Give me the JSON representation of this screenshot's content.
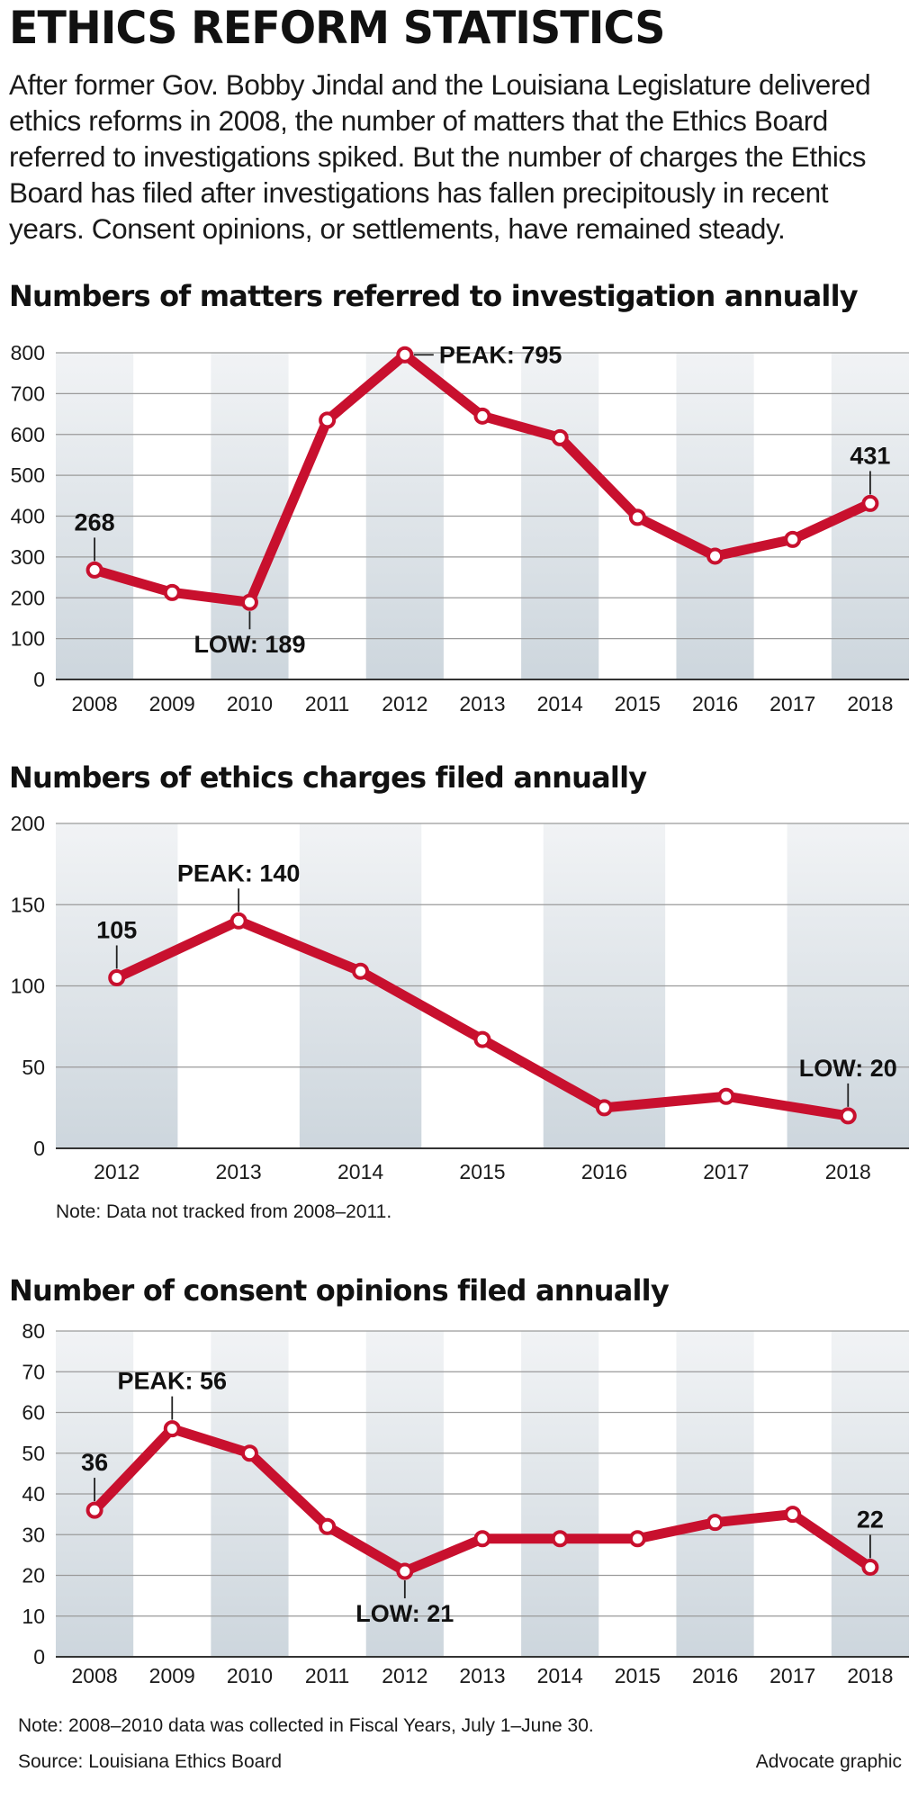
{
  "header": {
    "title": "ETHICS REFORM STATISTICS",
    "intro": "After former Gov. Bobby Jindal and the Louisiana Legislature delivered ethics reforms in 2008, the number of matters that the Ethics Board referred to investigations spiked. But the number of charges the Ethics Board has filed after investigations has fallen precipitously in recent years. Consent opinions, or settlements, have remained steady."
  },
  "colors": {
    "line": "#c8102e",
    "grid": "#9a9a9a",
    "band_top": "#f1f3f5",
    "band_bottom": "#cdd6dd"
  },
  "chart_data": [
    {
      "type": "line",
      "title": "Numbers of matters referred to investigation annually",
      "categories": [
        "2008",
        "2009",
        "2010",
        "2011",
        "2012",
        "2013",
        "2014",
        "2015",
        "2016",
        "2017",
        "2018"
      ],
      "values": [
        268,
        213,
        189,
        635,
        795,
        645,
        592,
        397,
        302,
        343,
        431
      ],
      "ylim": [
        0,
        800
      ],
      "yticks": [
        0,
        100,
        200,
        300,
        400,
        500,
        600,
        700,
        800
      ],
      "annotations": [
        {
          "index": 0,
          "label": "268",
          "position": "above"
        },
        {
          "index": 2,
          "label": "LOW: 189",
          "position": "below"
        },
        {
          "index": 4,
          "label": "PEAK: 795",
          "position": "right"
        },
        {
          "index": 10,
          "label": "431",
          "position": "above"
        }
      ],
      "note": ""
    },
    {
      "type": "line",
      "title": "Numbers of ethics charges filed annually",
      "categories": [
        "2012",
        "2013",
        "2014",
        "2015",
        "2016",
        "2017",
        "2018"
      ],
      "values": [
        105,
        140,
        109,
        67,
        25,
        32,
        20
      ],
      "ylim": [
        0,
        200
      ],
      "yticks": [
        0,
        50,
        100,
        150,
        200
      ],
      "annotations": [
        {
          "index": 0,
          "label": "105",
          "position": "above"
        },
        {
          "index": 1,
          "label": "PEAK: 140",
          "position": "above"
        },
        {
          "index": 6,
          "label": "LOW: 20",
          "position": "above"
        }
      ],
      "note": "Note: Data not tracked from 2008–2011."
    },
    {
      "type": "line",
      "title": "Number of consent opinions filed annually",
      "categories": [
        "2008",
        "2009",
        "2010",
        "2011",
        "2012",
        "2013",
        "2014",
        "2015",
        "2016",
        "2017",
        "2018"
      ],
      "values": [
        36,
        56,
        50,
        32,
        21,
        29,
        29,
        29,
        33,
        35,
        22
      ],
      "ylim": [
        0,
        80
      ],
      "yticks": [
        0,
        10,
        20,
        30,
        40,
        50,
        60,
        70,
        80
      ],
      "annotations": [
        {
          "index": 0,
          "label": "36",
          "position": "above"
        },
        {
          "index": 1,
          "label": "PEAK: 56",
          "position": "above"
        },
        {
          "index": 4,
          "label": "LOW: 21",
          "position": "below"
        },
        {
          "index": 10,
          "label": "22",
          "position": "above"
        }
      ],
      "note": "Note: 2008–2010 data was collected in Fiscal Years, July 1–June 30."
    }
  ],
  "footer": {
    "source": "Source: Louisiana Ethics Board",
    "credit": "Advocate graphic"
  }
}
